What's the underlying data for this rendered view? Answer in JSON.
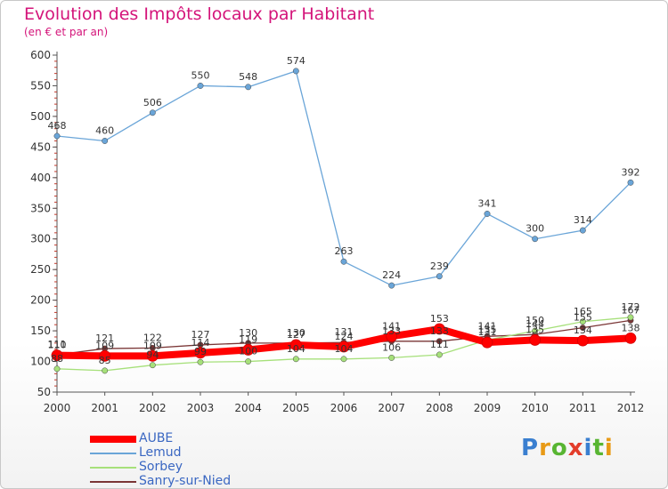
{
  "title": "Evolution des Impôts locaux par Habitant",
  "subtitle": "(en € et par an)",
  "logo": {
    "text": "Proxiti",
    "letter_colors": [
      "#3a7fd0",
      "#e89a16",
      "#58b532",
      "#e33d2b",
      "#3a7fd0",
      "#58b532",
      "#e89a16"
    ]
  },
  "chart_data": {
    "type": "line",
    "title": "Evolution des Impôts locaux par Habitant",
    "subtitle": "(en € et par an)",
    "x": [
      "2000",
      "2001",
      "2002",
      "2003",
      "2004",
      "2005",
      "2006",
      "2007",
      "2008",
      "2009",
      "2010",
      "2011",
      "2012"
    ],
    "ylim": [
      50,
      600
    ],
    "yticks": [
      50,
      100,
      150,
      200,
      250,
      300,
      350,
      400,
      450,
      500,
      550,
      600
    ],
    "grid": false,
    "legend": "bottom-left",
    "series": [
      {
        "name": "AUBE",
        "color": "#ff0000",
        "values": [
          110,
          109,
          109,
          114,
          119,
          127,
          124,
          141,
          153,
          131,
          135,
          134,
          138
        ],
        "labels": [
          "110",
          "109",
          "109",
          "114",
          "119",
          "127",
          "124",
          "141",
          "153",
          "131",
          "135",
          "134",
          "138"
        ]
      },
      {
        "name": "Lemud",
        "color": "#6aa5d8",
        "values": [
          468,
          460,
          506,
          550,
          548,
          574,
          263,
          224,
          239,
          341,
          300,
          314,
          392
        ],
        "labels": [
          "468",
          "460",
          "506",
          "550",
          "548",
          "574",
          "263",
          "224",
          "239",
          "341",
          "300",
          "314",
          "392"
        ]
      },
      {
        "name": "Sorbey",
        "color": "#a6e07a",
        "values": [
          88,
          85,
          94,
          99,
          100,
          104,
          104,
          106,
          111,
          135,
          150,
          165,
          172
        ],
        "labels": [
          "88",
          "85",
          "94",
          "99",
          "100",
          "104",
          "104",
          "106",
          "111",
          "135",
          "150",
          "165",
          "172"
        ]
      },
      {
        "name": "Sanry-sur-Nied",
        "color": "#7a3535",
        "values": [
          111,
          121,
          122,
          127,
          130,
          130,
          131,
          133,
          133,
          141,
          144,
          155,
          167
        ],
        "labels": [
          "111",
          "121",
          "122",
          "127",
          "130",
          "130",
          "131",
          "133",
          "133",
          "141",
          "144",
          "155",
          "167"
        ]
      }
    ]
  }
}
